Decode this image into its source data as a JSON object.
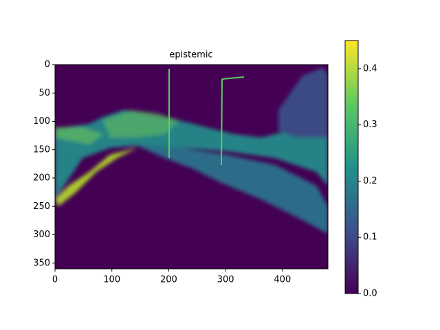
{
  "chart_data": {
    "type": "heatmap",
    "title": "epistemic",
    "xlim": [
      0,
      480
    ],
    "xticks": [
      0,
      100,
      200,
      300,
      400
    ],
    "ylim": [
      360,
      0
    ],
    "yticks": [
      0,
      50,
      100,
      150,
      200,
      250,
      300,
      350
    ],
    "colorbar": {
      "lim": [
        0,
        0.45
      ],
      "ticks": [
        {
          "value": 0,
          "label": "0.0"
        },
        0.1,
        0.2,
        0.3,
        0.4
      ],
      "colormap": [
        "#440154",
        "#3b528b",
        "#21918c",
        "#5ec962",
        "#fde725"
      ]
    }
  }
}
